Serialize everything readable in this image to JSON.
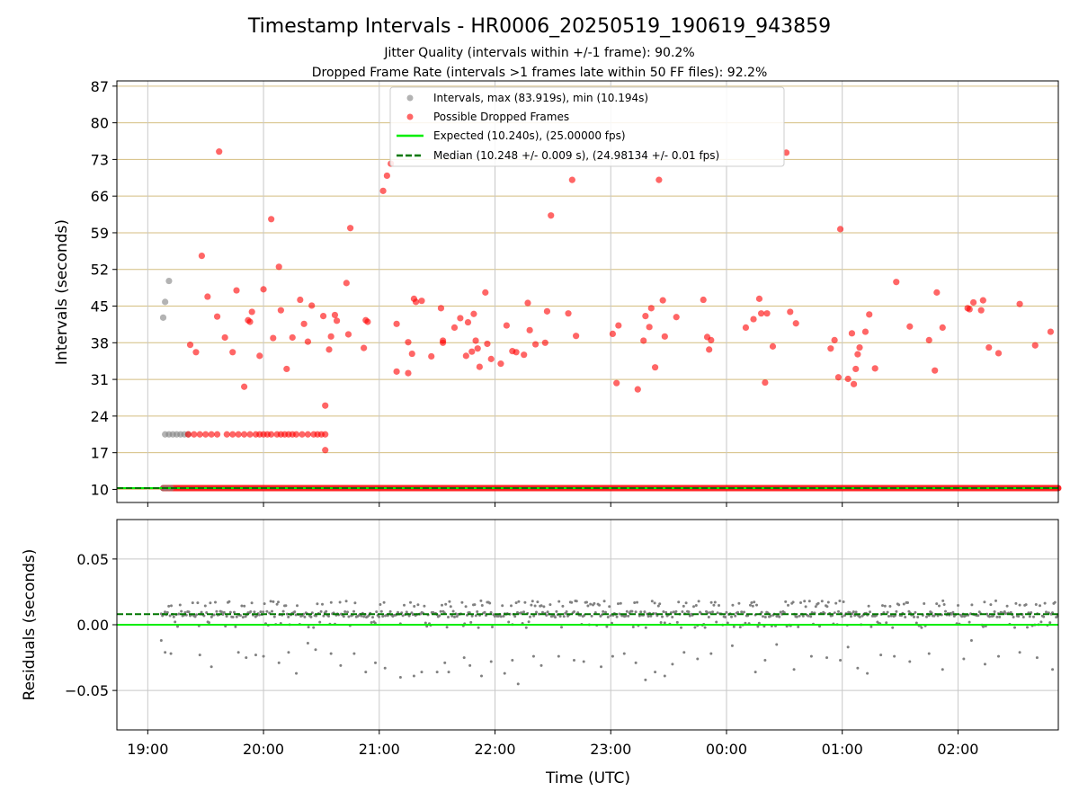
{
  "title": "Timestamp Intervals - HR0006_20250519_190619_943859",
  "subtitle_lines": [
    "Jitter Quality (intervals within +/-1 frame): 90.2%",
    "Dropped Frame Rate (intervals >1 frames late within 50 FF files): 92.2%"
  ],
  "colors": {
    "interval_points": "#808080",
    "dropped_points": "#ff0000",
    "expected_line": "#00ee00",
    "median_line": "#007700",
    "hgrid_top": "#d4be80",
    "vgrid": "#c8c8c8"
  },
  "chart_data": [
    {
      "type": "scatter",
      "ylabel": "Intervals (seconds)",
      "x_axis": {
        "kind": "time",
        "start": "18:44",
        "end": "02:52",
        "ticks": [
          "19:00",
          "20:00",
          "21:00",
          "22:00",
          "23:00",
          "00:00",
          "01:00",
          "02:00"
        ],
        "labels_shown": false
      },
      "y_axis": {
        "range": [
          7.5,
          88
        ],
        "ticks": [
          10,
          17,
          24,
          31,
          38,
          45,
          52,
          59,
          66,
          73,
          80,
          87
        ]
      },
      "grid": true,
      "legend": {
        "placement": "top-center",
        "entries": [
          "Intervals, max (83.919s), min (10.194s)",
          "Possible Dropped Frames",
          "Expected (10.240s), (25.00000 fps)",
          "Median (10.248 +/- 0.009 s), (24.98134 +/- 0.01 fps)"
        ]
      },
      "expected_value": 10.24,
      "median_value": 10.248,
      "baseline_dense_band": {
        "y": 10.24,
        "x_from": "19:08",
        "x_to": "02:52"
      },
      "interval_points_gray": [
        [
          "19:08",
          42.8
        ],
        [
          "19:09",
          45.8
        ],
        [
          "19:11",
          49.8
        ],
        [
          "19:09",
          20.5
        ],
        [
          "19:11",
          20.5
        ],
        [
          "19:13",
          20.5
        ],
        [
          "19:15",
          20.5
        ],
        [
          "19:17",
          20.5
        ],
        [
          "19:19",
          20.5
        ],
        [
          "19:21",
          20.5
        ],
        [
          "19:08",
          10.24
        ],
        [
          "19:10",
          10.24
        ],
        [
          "19:12",
          10.24
        ]
      ],
      "dropped_points_red": [
        [
          "19:22",
          37.6
        ],
        [
          "19:25",
          36.2
        ],
        [
          "19:28",
          54.6
        ],
        [
          "19:31",
          46.8
        ],
        [
          "19:36",
          43.0
        ],
        [
          "19:37",
          74.5
        ],
        [
          "19:40",
          39.0
        ],
        [
          "19:44",
          36.2
        ],
        [
          "19:46",
          48.0
        ],
        [
          "19:50",
          29.6
        ],
        [
          "19:52",
          42.3
        ],
        [
          "19:53",
          42.0
        ],
        [
          "19:54",
          43.9
        ],
        [
          "19:58",
          35.5
        ],
        [
          "20:00",
          48.2
        ],
        [
          "20:04",
          61.6
        ],
        [
          "20:05",
          38.9
        ],
        [
          "20:08",
          52.5
        ],
        [
          "20:09",
          44.2
        ],
        [
          "20:12",
          33.0
        ],
        [
          "20:15",
          39.0
        ],
        [
          "20:19",
          46.2
        ],
        [
          "20:21",
          41.6
        ],
        [
          "20:23",
          38.2
        ],
        [
          "20:25",
          45.1
        ],
        [
          "20:31",
          43.1
        ],
        [
          "20:32",
          26.0
        ],
        [
          "20:34",
          36.7
        ],
        [
          "20:35",
          39.2
        ],
        [
          "20:37",
          43.3
        ],
        [
          "20:38",
          42.2
        ],
        [
          "20:43",
          49.4
        ],
        [
          "20:44",
          39.6
        ],
        [
          "20:45",
          59.9
        ],
        [
          "20:52",
          37.0
        ],
        [
          "20:53",
          42.3
        ],
        [
          "20:54",
          42.0
        ],
        [
          "21:02",
          67.0
        ],
        [
          "21:04",
          69.9
        ],
        [
          "21:06",
          72.2
        ],
        [
          "21:09",
          41.6
        ],
        [
          "21:09",
          32.5
        ],
        [
          "21:15",
          38.1
        ],
        [
          "21:15",
          32.2
        ],
        [
          "21:17",
          35.9
        ],
        [
          "21:18",
          46.4
        ],
        [
          "21:19",
          45.8
        ],
        [
          "21:22",
          46.0
        ],
        [
          "21:27",
          35.4
        ],
        [
          "21:32",
          44.6
        ],
        [
          "21:33",
          38.0
        ],
        [
          "21:33",
          38.4
        ],
        [
          "21:39",
          40.9
        ],
        [
          "21:42",
          42.7
        ],
        [
          "21:45",
          35.5
        ],
        [
          "21:46",
          41.9
        ],
        [
          "21:48",
          36.3
        ],
        [
          "21:49",
          43.5
        ],
        [
          "21:50",
          38.4
        ],
        [
          "21:51",
          36.9
        ],
        [
          "21:52",
          33.4
        ],
        [
          "21:55",
          47.6
        ],
        [
          "21:56",
          37.8
        ],
        [
          "21:58",
          34.9
        ],
        [
          "22:03",
          34.0
        ],
        [
          "22:06",
          41.3
        ],
        [
          "22:09",
          36.4
        ],
        [
          "22:11",
          36.2
        ],
        [
          "22:15",
          35.7
        ],
        [
          "22:17",
          45.6
        ],
        [
          "22:18",
          40.4
        ],
        [
          "22:21",
          37.7
        ],
        [
          "22:26",
          38.0
        ],
        [
          "22:27",
          44.0
        ],
        [
          "22:29",
          62.3
        ],
        [
          "22:38",
          43.6
        ],
        [
          "22:40",
          69.1
        ],
        [
          "22:42",
          39.3
        ],
        [
          "23:01",
          39.7
        ],
        [
          "23:03",
          30.3
        ],
        [
          "23:04",
          41.3
        ],
        [
          "23:14",
          29.1
        ],
        [
          "23:17",
          38.4
        ],
        [
          "23:18",
          43.1
        ],
        [
          "23:20",
          41.0
        ],
        [
          "23:21",
          44.6
        ],
        [
          "23:23",
          33.3
        ],
        [
          "23:25",
          69.1
        ],
        [
          "23:27",
          46.1
        ],
        [
          "23:28",
          39.2
        ],
        [
          "23:34",
          42.9
        ],
        [
          "23:48",
          46.2
        ],
        [
          "23:50",
          39.1
        ],
        [
          "23:51",
          36.7
        ],
        [
          "23:52",
          38.5
        ],
        [
          "00:10",
          40.9
        ],
        [
          "00:14",
          42.5
        ],
        [
          "00:17",
          46.4
        ],
        [
          "00:18",
          43.6
        ],
        [
          "00:20",
          30.4
        ],
        [
          "00:21",
          43.6
        ],
        [
          "00:24",
          37.3
        ],
        [
          "00:31",
          74.3
        ],
        [
          "00:33",
          43.9
        ],
        [
          "00:36",
          41.7
        ],
        [
          "00:54",
          36.9
        ],
        [
          "00:56",
          38.5
        ],
        [
          "00:58",
          31.4
        ],
        [
          "00:59",
          59.7
        ],
        [
          "01:03",
          31.1
        ],
        [
          "01:05",
          39.8
        ],
        [
          "01:06",
          30.1
        ],
        [
          "01:07",
          33.0
        ],
        [
          "01:08",
          35.8
        ],
        [
          "01:09",
          37.1
        ],
        [
          "01:12",
          40.1
        ],
        [
          "01:14",
          43.4
        ],
        [
          "01:17",
          33.1
        ],
        [
          "01:28",
          49.6
        ],
        [
          "01:35",
          41.1
        ],
        [
          "01:45",
          38.5
        ],
        [
          "01:48",
          32.7
        ],
        [
          "01:49",
          47.6
        ],
        [
          "01:52",
          40.9
        ],
        [
          "02:05",
          44.6
        ],
        [
          "02:06",
          44.4
        ],
        [
          "02:08",
          45.7
        ],
        [
          "02:12",
          44.2
        ],
        [
          "02:13",
          46.1
        ],
        [
          "02:16",
          37.1
        ],
        [
          "02:21",
          36.0
        ],
        [
          "02:32",
          45.4
        ],
        [
          "02:40",
          37.5
        ],
        [
          "02:48",
          40.1
        ],
        [
          "19:21",
          20.5
        ],
        [
          "19:24",
          20.5
        ],
        [
          "19:27",
          20.5
        ],
        [
          "19:30",
          20.5
        ],
        [
          "19:33",
          20.5
        ],
        [
          "19:36",
          20.5
        ],
        [
          "19:41",
          20.5
        ],
        [
          "19:44",
          20.5
        ],
        [
          "19:47",
          20.5
        ],
        [
          "19:50",
          20.5
        ],
        [
          "19:53",
          20.5
        ],
        [
          "19:56",
          20.5
        ],
        [
          "19:58",
          20.5
        ],
        [
          "20:00",
          20.5
        ],
        [
          "20:02",
          20.5
        ],
        [
          "20:04",
          20.5
        ],
        [
          "20:07",
          20.5
        ],
        [
          "20:09",
          20.5
        ],
        [
          "20:11",
          20.5
        ],
        [
          "20:13",
          20.5
        ],
        [
          "20:15",
          20.5
        ],
        [
          "20:17",
          20.5
        ],
        [
          "20:20",
          20.5
        ],
        [
          "20:23",
          20.5
        ],
        [
          "20:26",
          20.5
        ],
        [
          "20:28",
          20.5
        ],
        [
          "20:30",
          20.5
        ],
        [
          "20:32",
          20.5
        ],
        [
          "20:32",
          17.5
        ]
      ]
    },
    {
      "type": "scatter",
      "ylabel": "Residuals (seconds)",
      "xlabel": "Time (UTC)",
      "x_axis": {
        "kind": "time",
        "start": "18:44",
        "end": "02:52",
        "ticks": [
          "19:00",
          "20:00",
          "21:00",
          "22:00",
          "23:00",
          "00:00",
          "01:00",
          "02:00"
        ]
      },
      "y_axis": {
        "range": [
          -0.08,
          0.08
        ],
        "ticks": [
          0.05,
          0.0,
          -0.05
        ],
        "tick_labels": [
          "0.05",
          "0.00",
          "−0.05"
        ]
      },
      "grid": true,
      "expected_residual": 0.0,
      "median_residual": 0.008,
      "residual_point_color": "#808080",
      "residual_cloud": {
        "x_from": "19:07",
        "x_to": "02:52",
        "levels": [
          0.008,
          0.016,
          0.0
        ]
      },
      "residual_outliers": [
        [
          "19:07",
          -0.012
        ],
        [
          "19:09",
          -0.021
        ],
        [
          "19:12",
          -0.022
        ],
        [
          "19:27",
          -0.023
        ],
        [
          "19:33",
          -0.032
        ],
        [
          "19:47",
          -0.021
        ],
        [
          "19:51",
          -0.025
        ],
        [
          "19:56",
          -0.023
        ],
        [
          "20:00",
          -0.024
        ],
        [
          "20:08",
          -0.029
        ],
        [
          "20:13",
          -0.021
        ],
        [
          "20:17",
          -0.037
        ],
        [
          "20:23",
          -0.014
        ],
        [
          "20:27",
          -0.019
        ],
        [
          "20:35",
          -0.022
        ],
        [
          "20:40",
          -0.031
        ],
        [
          "20:47",
          -0.022
        ],
        [
          "20:53",
          -0.036
        ],
        [
          "20:58",
          -0.029
        ],
        [
          "21:03",
          -0.033
        ],
        [
          "21:11",
          -0.04
        ],
        [
          "21:18",
          -0.039
        ],
        [
          "21:22",
          -0.036
        ],
        [
          "21:30",
          -0.036
        ],
        [
          "21:34",
          -0.029
        ],
        [
          "21:36",
          -0.036
        ],
        [
          "21:44",
          -0.025
        ],
        [
          "21:47",
          -0.031
        ],
        [
          "21:53",
          -0.039
        ],
        [
          "21:58",
          -0.028
        ],
        [
          "22:05",
          -0.037
        ],
        [
          "22:09",
          -0.027
        ],
        [
          "22:12",
          -0.045
        ],
        [
          "22:20",
          -0.024
        ],
        [
          "22:24",
          -0.031
        ],
        [
          "22:33",
          -0.024
        ],
        [
          "22:41",
          -0.027
        ],
        [
          "22:46",
          -0.028
        ],
        [
          "22:55",
          -0.032
        ],
        [
          "23:01",
          -0.024
        ],
        [
          "23:07",
          -0.022
        ],
        [
          "23:13",
          -0.029
        ],
        [
          "23:18",
          -0.042
        ],
        [
          "23:23",
          -0.036
        ],
        [
          "23:28",
          -0.039
        ],
        [
          "23:32",
          -0.03
        ],
        [
          "23:38",
          -0.021
        ],
        [
          "23:45",
          -0.026
        ],
        [
          "23:52",
          -0.022
        ],
        [
          "00:03",
          -0.016
        ],
        [
          "00:15",
          -0.036
        ],
        [
          "00:20",
          -0.027
        ],
        [
          "00:26",
          -0.015
        ],
        [
          "00:35",
          -0.034
        ],
        [
          "00:44",
          -0.024
        ],
        [
          "00:52",
          -0.025
        ],
        [
          "00:59",
          -0.027
        ],
        [
          "01:03",
          -0.017
        ],
        [
          "01:08",
          -0.033
        ],
        [
          "01:13",
          -0.037
        ],
        [
          "01:20",
          -0.023
        ],
        [
          "01:27",
          -0.024
        ],
        [
          "01:35",
          -0.028
        ],
        [
          "01:45",
          -0.022
        ],
        [
          "01:52",
          -0.034
        ],
        [
          "02:03",
          -0.026
        ],
        [
          "02:07",
          -0.012
        ],
        [
          "02:14",
          -0.03
        ],
        [
          "02:21",
          -0.024
        ],
        [
          "02:32",
          -0.021
        ],
        [
          "02:41",
          -0.025
        ],
        [
          "02:49",
          -0.034
        ]
      ]
    }
  ]
}
